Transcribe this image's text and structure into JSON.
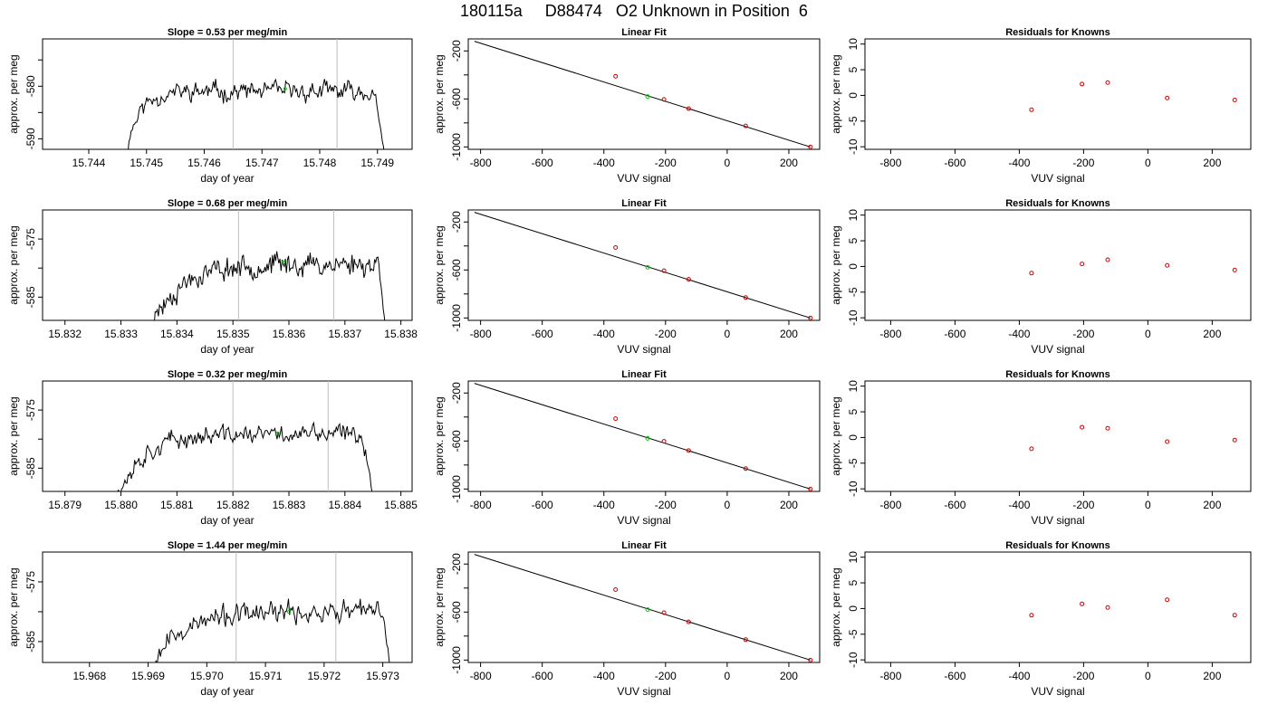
{
  "page": {
    "title": "180115a     D88474   O2 Unknown in Position  6"
  },
  "rows": [
    {
      "timeseries": {
        "title": "Slope =  0.53  per meg/min",
        "xlabel": "day of year",
        "ylabel": "approx. per meg",
        "xlim": [
          15.7432,
          15.7496
        ],
        "ylim": [
          -592,
          -571
        ],
        "xticks": [
          15.744,
          15.745,
          15.746,
          15.747,
          15.748,
          15.749
        ],
        "xtick_labels": [
          "15.744",
          "15.745",
          "15.746",
          "15.747",
          "15.748",
          "15.749"
        ],
        "yticks": [
          -590,
          -585,
          -580,
          -575
        ],
        "ytick_labels": [
          "-590",
          "",
          "-580",
          ""
        ],
        "vlines": [
          15.7465,
          15.7483
        ],
        "green_point": [
          15.7474,
          -580.5
        ],
        "signal": {
          "t_start": 15.7446,
          "t_end": 15.7492,
          "n": 240,
          "base": -581.0,
          "ramp_tau": 0.00022,
          "amp": 1.6,
          "fall_start": 15.7489,
          "fall_to": -600,
          "seed": 11
        }
      },
      "linearfit": {
        "title": "Linear Fit",
        "xlabel": "VUV signal",
        "ylabel": "approx. per meg",
        "xlim": [
          -840,
          300
        ],
        "ylim": [
          -1020,
          -100
        ],
        "xticks": [
          -800,
          -600,
          -400,
          -200,
          0,
          200
        ],
        "xtick_labels": [
          "-800",
          "-600",
          "-400",
          "-200",
          "0",
          "200"
        ],
        "yticks": [
          -200,
          -400,
          -600,
          -800,
          -1000
        ],
        "ytick_labels": [
          "-200",
          "",
          "-600",
          "",
          "-1000"
        ],
        "line": {
          "x": [
            -820,
            270
          ],
          "y": [
            -120,
            -1000
          ]
        },
        "known_points": {
          "x": [
            -362,
            -205,
            -125,
            60,
            270
          ],
          "y": [
            -411,
            -604,
            -681,
            -825,
            -1000
          ]
        },
        "unknown_point": {
          "x": -258,
          "y": -581
        }
      },
      "residuals": {
        "title": "Residuals for Knowns",
        "xlabel": "VUV signal",
        "ylabel": "approx. per meg",
        "xlim": [
          -880,
          320
        ],
        "ylim": [
          -10.5,
          11
        ],
        "xticks": [
          -800,
          -600,
          -400,
          -200,
          0,
          200
        ],
        "xtick_labels": [
          "-800",
          "-600",
          "-400",
          "-200",
          "0",
          "200"
        ],
        "yticks": [
          -10,
          -5,
          0,
          5,
          10
        ],
        "ytick_labels": [
          "-10",
          "-5",
          "0",
          "5",
          "10"
        ],
        "points": {
          "x": [
            -362,
            -205,
            -125,
            60,
            270
          ],
          "y": [
            -2.8,
            2.2,
            2.5,
            -0.5,
            -0.9
          ]
        }
      }
    },
    {
      "timeseries": {
        "title": "Slope =  0.68  per meg/min",
        "xlabel": "day of year",
        "ylabel": "approx. per meg",
        "xlim": [
          15.8316,
          15.8382
        ],
        "ylim": [
          -589,
          -570
        ],
        "xticks": [
          15.832,
          15.833,
          15.834,
          15.835,
          15.836,
          15.837,
          15.838
        ],
        "xtick_labels": [
          "15.832",
          "15.833",
          "15.834",
          "15.835",
          "15.836",
          "15.837",
          "15.838"
        ],
        "yticks": [
          -585,
          -580,
          -575
        ],
        "ytick_labels": [
          "-585",
          "",
          "-575"
        ],
        "vlines": [
          15.8351,
          15.8368
        ],
        "green_point": [
          15.8359,
          -579
        ],
        "signal": {
          "t_start": 15.8334,
          "t_end": 15.8378,
          "n": 230,
          "base": -579.3,
          "ramp_tau": 0.0005,
          "amp": 1.8,
          "fall_start": 15.8376,
          "fall_to": -600,
          "seed": 23
        }
      },
      "linearfit": {
        "title": "Linear Fit",
        "xlabel": "VUV signal",
        "ylabel": "approx. per meg",
        "xlim": [
          -840,
          300
        ],
        "ylim": [
          -1020,
          -100
        ],
        "xticks": [
          -800,
          -600,
          -400,
          -200,
          0,
          200
        ],
        "xtick_labels": [
          "-800",
          "-600",
          "-400",
          "-200",
          "0",
          "200"
        ],
        "yticks": [
          -200,
          -400,
          -600,
          -800,
          -1000
        ],
        "ytick_labels": [
          "-200",
          "",
          "-600",
          "",
          "-1000"
        ],
        "line": {
          "x": [
            -820,
            270
          ],
          "y": [
            -120,
            -1000
          ]
        },
        "known_points": {
          "x": [
            -362,
            -205,
            -125,
            60,
            270
          ],
          "y": [
            -413,
            -606,
            -678,
            -830,
            -1000
          ]
        },
        "unknown_point": {
          "x": -258,
          "y": -578
        }
      },
      "residuals": {
        "title": "Residuals for Knowns",
        "xlabel": "VUV signal",
        "ylabel": "approx. per meg",
        "xlim": [
          -880,
          320
        ],
        "ylim": [
          -10.5,
          11
        ],
        "xticks": [
          -800,
          -600,
          -400,
          -200,
          0,
          200
        ],
        "xtick_labels": [
          "-800",
          "-600",
          "-400",
          "-200",
          "0",
          "200"
        ],
        "yticks": [
          -10,
          -5,
          0,
          5,
          10
        ],
        "ytick_labels": [
          "-10",
          "-5",
          "0",
          "5",
          "10"
        ],
        "points": {
          "x": [
            -362,
            -205,
            -125,
            60,
            270
          ],
          "y": [
            -1.3,
            0.5,
            1.3,
            0.2,
            -0.7
          ]
        }
      }
    },
    {
      "timeseries": {
        "title": "Slope =  0.32  per meg/min",
        "xlabel": "day of year",
        "ylabel": "approx. per meg",
        "xlim": [
          15.8786,
          15.8852
        ],
        "ylim": [
          -589,
          -570
        ],
        "xticks": [
          15.879,
          15.88,
          15.881,
          15.882,
          15.883,
          15.884,
          15.885
        ],
        "xtick_labels": [
          "15.879",
          "15.880",
          "15.881",
          "15.882",
          "15.883",
          "15.884",
          "15.885"
        ],
        "yticks": [
          -585,
          -580,
          -575
        ],
        "ytick_labels": [
          "-585",
          "",
          "-575"
        ],
        "vlines": [
          15.882,
          15.8837
        ],
        "green_point": [
          15.8828,
          -579
        ],
        "signal": {
          "t_start": 15.8798,
          "t_end": 15.8846,
          "n": 250,
          "base": -579.2,
          "ramp_tau": 0.00045,
          "amp": 1.5,
          "fall_start": 15.8843,
          "fall_to": -600,
          "seed": 37
        }
      },
      "linearfit": {
        "title": "Linear Fit",
        "xlabel": "VUV signal",
        "ylabel": "approx. per meg",
        "xlim": [
          -840,
          300
        ],
        "ylim": [
          -1020,
          -100
        ],
        "xticks": [
          -800,
          -600,
          -400,
          -200,
          0,
          200
        ],
        "xtick_labels": [
          "-800",
          "-600",
          "-400",
          "-200",
          "0",
          "200"
        ],
        "yticks": [
          -200,
          -400,
          -600,
          -800,
          -1000
        ],
        "ytick_labels": [
          "-200",
          "",
          "-600",
          "",
          "-1000"
        ],
        "line": {
          "x": [
            -820,
            270
          ],
          "y": [
            -120,
            -1000
          ]
        },
        "known_points": {
          "x": [
            -362,
            -205,
            -125,
            60,
            270
          ],
          "y": [
            -414,
            -602,
            -680,
            -830,
            -1000
          ]
        },
        "unknown_point": {
          "x": -258,
          "y": -578
        }
      },
      "residuals": {
        "title": "Residuals for Knowns",
        "xlabel": "VUV signal",
        "ylabel": "approx. per meg",
        "xlim": [
          -880,
          320
        ],
        "ylim": [
          -10.5,
          11
        ],
        "xticks": [
          -800,
          -600,
          -400,
          -200,
          0,
          200
        ],
        "xtick_labels": [
          "-800",
          "-600",
          "-400",
          "-200",
          "0",
          "200"
        ],
        "yticks": [
          -10,
          -5,
          0,
          5,
          10
        ],
        "ytick_labels": [
          "-10",
          "-5",
          "0",
          "5",
          "10"
        ],
        "points": {
          "x": [
            -362,
            -205,
            -125,
            60,
            270
          ],
          "y": [
            -2.2,
            2.0,
            1.8,
            -0.8,
            -0.5
          ]
        }
      }
    },
    {
      "timeseries": {
        "title": "Slope =  1.44  per meg/min",
        "xlabel": "day of year",
        "ylabel": "approx. per meg",
        "xlim": [
          15.9672,
          15.9735
        ],
        "ylim": [
          -588.5,
          -570
        ],
        "xticks": [
          15.968,
          15.969,
          15.97,
          15.971,
          15.972,
          15.973
        ],
        "xtick_labels": [
          "15.968",
          "15.969",
          "15.970",
          "15.971",
          "15.972",
          "15.973"
        ],
        "yticks": [
          -585,
          -580,
          -575
        ],
        "ytick_labels": [
          "-585",
          "",
          "-575"
        ],
        "vlines": [
          15.9705,
          15.9722
        ],
        "green_point": [
          15.9714,
          -580
        ],
        "signal": {
          "t_start": 15.9687,
          "t_end": 15.9732,
          "n": 240,
          "base": -580.0,
          "ramp_tau": 0.0006,
          "amp": 1.6,
          "fall_start": 15.973,
          "fall_to": -600,
          "seed": 53
        }
      },
      "linearfit": {
        "title": "Linear Fit",
        "xlabel": "VUV signal",
        "ylabel": "approx. per meg",
        "xlim": [
          -840,
          300
        ],
        "ylim": [
          -1020,
          -100
        ],
        "xticks": [
          -800,
          -600,
          -400,
          -200,
          0,
          200
        ],
        "xtick_labels": [
          "-800",
          "-600",
          "-400",
          "-200",
          "0",
          "200"
        ],
        "yticks": [
          -200,
          -400,
          -600,
          -800,
          -1000
        ],
        "ytick_labels": [
          "-200",
          "",
          "-600",
          "",
          "-1000"
        ],
        "line": {
          "x": [
            -820,
            270
          ],
          "y": [
            -120,
            -1000
          ]
        },
        "known_points": {
          "x": [
            -362,
            -205,
            -125,
            60,
            270
          ],
          "y": [
            -413,
            -605,
            -682,
            -830,
            -1000
          ]
        },
        "unknown_point": {
          "x": -258,
          "y": -580
        }
      },
      "residuals": {
        "title": "Residuals for Knowns",
        "xlabel": "VUV signal",
        "ylabel": "approx. per meg",
        "xlim": [
          -880,
          320
        ],
        "ylim": [
          -10.5,
          11
        ],
        "xticks": [
          -800,
          -600,
          -400,
          -200,
          0,
          200
        ],
        "xtick_labels": [
          "-800",
          "-600",
          "-400",
          "-200",
          "0",
          "200"
        ],
        "yticks": [
          -10,
          -5,
          0,
          5,
          10
        ],
        "ytick_labels": [
          "-10",
          "-5",
          "0",
          "5",
          "10"
        ],
        "points": {
          "x": [
            -362,
            -205,
            -125,
            60,
            270
          ],
          "y": [
            -1.3,
            0.9,
            0.2,
            1.7,
            -1.3
          ]
        }
      }
    }
  ],
  "colors": {
    "line": "#000000",
    "vline": "#bebebe",
    "known": "#cc0000",
    "unknown": "#00cc00"
  },
  "chart_data": [
    {
      "type": "line",
      "title": "Slope =  0.53  per meg/min",
      "xlabel": "day of year",
      "ylabel": "approx. per meg",
      "xlim": [
        15.7432,
        15.7496
      ],
      "ylim": [
        -592,
        -571
      ]
    },
    {
      "type": "scatter",
      "title": "Linear Fit",
      "xlabel": "VUV signal",
      "ylabel": "approx. per meg",
      "x": [
        -362,
        -205,
        -125,
        60,
        270
      ],
      "y": [
        -411,
        -604,
        -681,
        -825,
        -1000
      ]
    },
    {
      "type": "scatter",
      "title": "Residuals for Knowns",
      "xlabel": "VUV signal",
      "ylabel": "approx. per meg",
      "x": [
        -362,
        -205,
        -125,
        60,
        270
      ],
      "y": [
        -2.8,
        2.2,
        2.5,
        -0.5,
        -0.9
      ]
    },
    {
      "type": "line",
      "title": "Slope =  0.68  per meg/min",
      "xlabel": "day of year",
      "ylabel": "approx. per meg",
      "xlim": [
        15.8316,
        15.8382
      ],
      "ylim": [
        -589,
        -570
      ]
    },
    {
      "type": "scatter",
      "title": "Linear Fit",
      "xlabel": "VUV signal",
      "ylabel": "approx. per meg",
      "x": [
        -362,
        -205,
        -125,
        60,
        270
      ],
      "y": [
        -413,
        -606,
        -678,
        -830,
        -1000
      ]
    },
    {
      "type": "scatter",
      "title": "Residuals for Knowns",
      "xlabel": "VUV signal",
      "ylabel": "approx. per meg",
      "x": [
        -362,
        -205,
        -125,
        60,
        270
      ],
      "y": [
        -1.3,
        0.5,
        1.3,
        0.2,
        -0.7
      ]
    },
    {
      "type": "line",
      "title": "Slope =  0.32  per meg/min",
      "xlabel": "day of year",
      "ylabel": "approx. per meg",
      "xlim": [
        15.8786,
        15.8852
      ],
      "ylim": [
        -589,
        -570
      ]
    },
    {
      "type": "scatter",
      "title": "Linear Fit",
      "xlabel": "VUV signal",
      "ylabel": "approx. per meg",
      "x": [
        -362,
        -205,
        -125,
        60,
        270
      ],
      "y": [
        -414,
        -602,
        -680,
        -830,
        -1000
      ]
    },
    {
      "type": "scatter",
      "title": "Residuals for Knowns",
      "xlabel": "VUV signal",
      "ylabel": "approx. per meg",
      "x": [
        -362,
        -205,
        -125,
        60,
        270
      ],
      "y": [
        -2.2,
        2.0,
        1.8,
        -0.8,
        -0.5
      ]
    },
    {
      "type": "line",
      "title": "Slope =  1.44  per meg/min",
      "xlabel": "day of year",
      "ylabel": "approx. per meg",
      "xlim": [
        15.9672,
        15.9735
      ],
      "ylim": [
        -588.5,
        -570
      ]
    },
    {
      "type": "scatter",
      "title": "Linear Fit",
      "xlabel": "VUV signal",
      "ylabel": "approx. per meg",
      "x": [
        -362,
        -205,
        -125,
        60,
        270
      ],
      "y": [
        -413,
        -605,
        -682,
        -830,
        -1000
      ]
    },
    {
      "type": "scatter",
      "title": "Residuals for Knowns",
      "xlabel": "VUV signal",
      "ylabel": "approx. per meg",
      "x": [
        -362,
        -205,
        -125,
        60,
        270
      ],
      "y": [
        -1.3,
        0.9,
        0.2,
        1.7,
        -1.3
      ]
    }
  ]
}
